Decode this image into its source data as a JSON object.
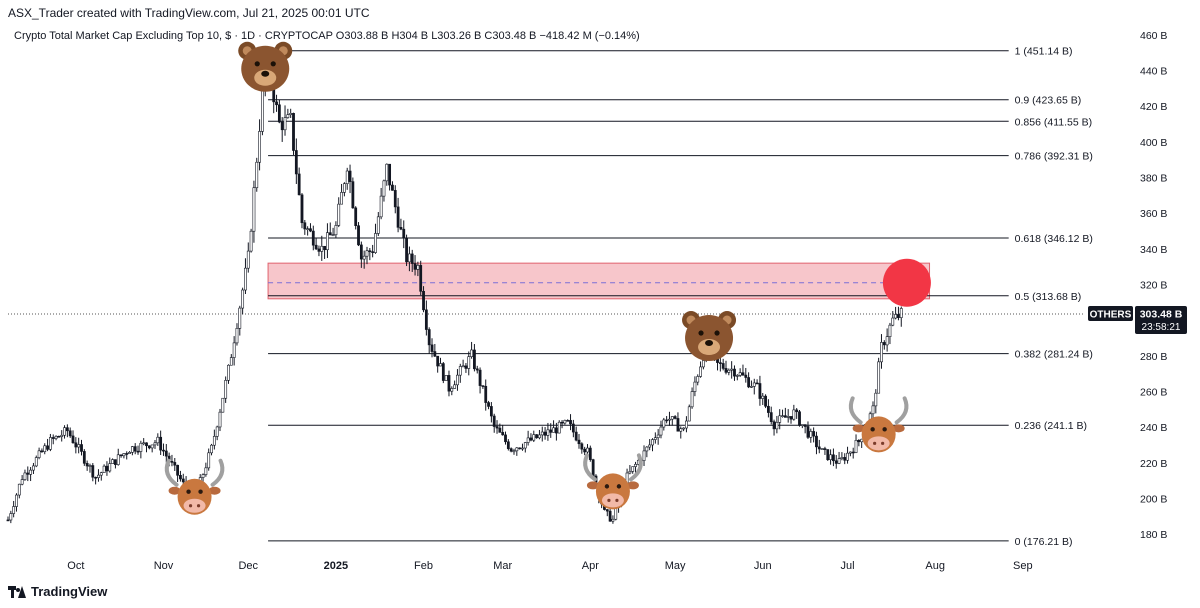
{
  "header": {
    "credit": "ASX_Trader created with TradingView.com, Jul 21, 2025 00:01 UTC",
    "symbol_line": "Crypto Total Market Cap Excluding Top 10, $ · 1D · CRYPTOCAP  O303.88 B  H304 B  L303.26 B  C303.48 B  −418.42 M (−0.14%)"
  },
  "footer": {
    "brand": "TradingView"
  },
  "chart_data": {
    "type": "candlestick",
    "symbol": "OTHERS",
    "ylim": [
      170,
      465
    ],
    "y_ticks": [
      {
        "v": 460,
        "label": "460 B"
      },
      {
        "v": 440,
        "label": "440 B"
      },
      {
        "v": 420,
        "label": "420 B"
      },
      {
        "v": 400,
        "label": "400 B"
      },
      {
        "v": 380,
        "label": "380 B"
      },
      {
        "v": 360,
        "label": "360 B"
      },
      {
        "v": 340,
        "label": "340 B"
      },
      {
        "v": 320,
        "label": "320 B"
      },
      {
        "v": 300,
        "label": "300 B"
      },
      {
        "v": 280,
        "label": "280 B"
      },
      {
        "v": 260,
        "label": "260 B"
      },
      {
        "v": 240,
        "label": "240 B"
      },
      {
        "v": 220,
        "label": "220 B"
      },
      {
        "v": 200,
        "label": "200 B"
      },
      {
        "v": 180,
        "label": "180 B"
      }
    ],
    "x_ticks": [
      {
        "date": "2024-10-01",
        "label": "Oct",
        "bold": false
      },
      {
        "date": "2024-11-01",
        "label": "Nov",
        "bold": false
      },
      {
        "date": "2024-12-01",
        "label": "Dec",
        "bold": false
      },
      {
        "date": "2025-01-01",
        "label": "2025",
        "bold": true
      },
      {
        "date": "2025-02-01",
        "label": "Feb",
        "bold": false
      },
      {
        "date": "2025-03-01",
        "label": "Mar",
        "bold": false
      },
      {
        "date": "2025-04-01",
        "label": "Apr",
        "bold": false
      },
      {
        "date": "2025-05-01",
        "label": "May",
        "bold": false
      },
      {
        "date": "2025-06-01",
        "label": "Jun",
        "bold": false
      },
      {
        "date": "2025-07-01",
        "label": "Jul",
        "bold": false
      },
      {
        "date": "2025-08-01",
        "label": "Aug",
        "bold": false
      },
      {
        "date": "2025-09-01",
        "label": "Sep",
        "bold": false
      }
    ],
    "x_range": [
      "2024-09-07",
      "2025-09-23"
    ],
    "price_path": [
      [
        "2024-09-07",
        188
      ],
      [
        "2024-09-12",
        212
      ],
      [
        "2024-09-22",
        232
      ],
      [
        "2024-09-28",
        238
      ],
      [
        "2024-10-08",
        212
      ],
      [
        "2024-10-20",
        228
      ],
      [
        "2024-10-30",
        232
      ],
      [
        "2024-11-08",
        208
      ],
      [
        "2024-11-12",
        200
      ],
      [
        "2024-11-18",
        228
      ],
      [
        "2024-11-24",
        272
      ],
      [
        "2024-12-01",
        335
      ],
      [
        "2024-12-06",
        428
      ],
      [
        "2024-12-08",
        443
      ],
      [
        "2024-12-12",
        410
      ],
      [
        "2024-12-16",
        412
      ],
      [
        "2024-12-20",
        355
      ],
      [
        "2024-12-27",
        340
      ],
      [
        "2025-01-01",
        352
      ],
      [
        "2025-01-05",
        388
      ],
      [
        "2025-01-10",
        335
      ],
      [
        "2025-01-14",
        340
      ],
      [
        "2025-01-19",
        385
      ],
      [
        "2025-01-26",
        335
      ],
      [
        "2025-01-30",
        330
      ],
      [
        "2025-02-03",
        288
      ],
      [
        "2025-02-10",
        262
      ],
      [
        "2025-02-18",
        280
      ],
      [
        "2025-02-26",
        240
      ],
      [
        "2025-03-04",
        228
      ],
      [
        "2025-03-10",
        232
      ],
      [
        "2025-03-24",
        242
      ],
      [
        "2025-03-31",
        226
      ],
      [
        "2025-04-06",
        192
      ],
      [
        "2025-04-09",
        188
      ],
      [
        "2025-04-14",
        212
      ],
      [
        "2025-04-22",
        230
      ],
      [
        "2025-04-28",
        246
      ],
      [
        "2025-05-04",
        238
      ],
      [
        "2025-05-08",
        265
      ],
      [
        "2025-05-12",
        286
      ],
      [
        "2025-05-16",
        275
      ],
      [
        "2025-05-22",
        272
      ],
      [
        "2025-05-30",
        262
      ],
      [
        "2025-06-05",
        242
      ],
      [
        "2025-06-12",
        248
      ],
      [
        "2025-06-22",
        226
      ],
      [
        "2025-06-28",
        220
      ],
      [
        "2025-07-05",
        232
      ],
      [
        "2025-07-10",
        250
      ],
      [
        "2025-07-13",
        285
      ],
      [
        "2025-07-17",
        300
      ],
      [
        "2025-07-20",
        303.48
      ]
    ],
    "fib_levels": [
      {
        "v": 451.14,
        "label": "1 (451.14 B)"
      },
      {
        "v": 423.65,
        "label": "0.9 (423.65 B)"
      },
      {
        "v": 411.55,
        "label": "0.856 (411.55 B)"
      },
      {
        "v": 392.31,
        "label": "0.786 (392.31 B)"
      },
      {
        "v": 346.12,
        "label": "0.618 (346.12 B)"
      },
      {
        "v": 313.68,
        "label": "0.5 (313.68 B)"
      },
      {
        "v": 281.24,
        "label": "0.382 (281.24 B)"
      },
      {
        "v": 241.1,
        "label": "0.236 (241.1 B)"
      },
      {
        "v": 176.21,
        "label": "0 (176.21 B)"
      }
    ],
    "fib_start": "2024-12-08",
    "fib_end": "2025-08-27",
    "resistance_zone": {
      "from": "2024-12-08",
      "to": "2025-07-30",
      "low": 312,
      "high": 332,
      "mid": 321,
      "fill": "#f7c6cb",
      "stroke": "#e0626e"
    },
    "current_price": {
      "value": 303.48,
      "label": "303.48 B",
      "countdown": "23:58:21",
      "tag": "OTHERS"
    },
    "red_circle": {
      "date": "2025-07-22",
      "value": 321,
      "color": "#f23645"
    },
    "annotations": [
      {
        "kind": "bull",
        "date": "2024-11-12",
        "value": 201
      },
      {
        "kind": "bear",
        "date": "2024-12-07",
        "value": 441
      },
      {
        "kind": "bull",
        "date": "2025-04-09",
        "value": 204
      },
      {
        "kind": "bear",
        "date": "2025-05-13",
        "value": 290
      },
      {
        "kind": "bull",
        "date": "2025-07-12",
        "value": 236
      }
    ]
  },
  "colors": {
    "candle": "#131722",
    "grid_line": "#131722",
    "axis_text": "#131722",
    "price_tag_bg": "#131722",
    "price_tag_fg": "#ffffff"
  }
}
